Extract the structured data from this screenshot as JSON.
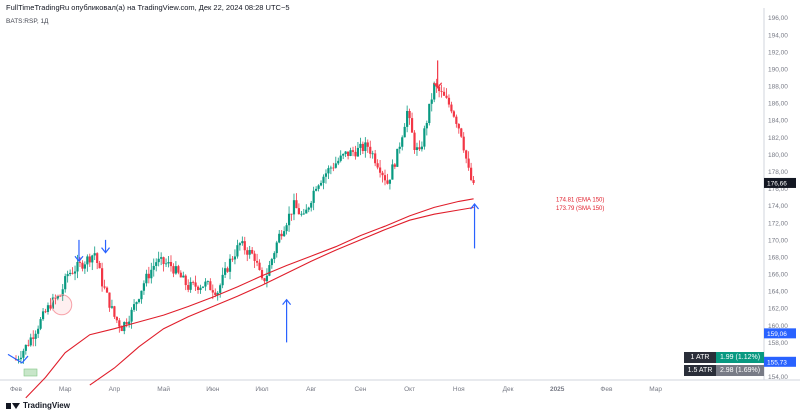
{
  "header": {
    "text": "FullTimeTradingRu опубликовал(а) на TradingView.com, Дек 22, 2024 08:28 UTC−5",
    "symbol": "BATS:RSP, 1Д"
  },
  "footer": {
    "brand": "TradingView"
  },
  "atr": [
    {
      "label": "1 ATR",
      "value": "1.99 (1.12%)",
      "color": "#089981"
    },
    {
      "label": "1.5 ATR",
      "value": "2.98 (1.69%)",
      "color": "#787b86"
    }
  ],
  "chart_data": {
    "type": "candlestick",
    "y_axis": {
      "range": [
        154,
        196
      ],
      "ticks": [
        "196,00",
        "194,00",
        "192,00",
        "190,00",
        "188,00",
        "186,00",
        "184,00",
        "182,00",
        "180,00",
        "178,00",
        "176,00",
        "174,00",
        "172,00",
        "170,00",
        "168,00",
        "166,00",
        "164,00",
        "162,00",
        "160,00",
        "158,00",
        "156,00",
        "154,00"
      ]
    },
    "x_axis": {
      "ticks": [
        "Фев",
        "Мар",
        "Апр",
        "Май",
        "Июн",
        "Июл",
        "Авг",
        "Сен",
        "Окт",
        "Ноя",
        "Дек",
        "2025",
        "Фев",
        "Мар"
      ]
    },
    "price_labels": [
      {
        "value": "176,66",
        "price": 176.66,
        "color": "#131722"
      },
      {
        "value": "159,06",
        "price": 159.06,
        "color": "#2962ff"
      },
      {
        "value": "155,73",
        "price": 155.73,
        "color": "#2962ff"
      }
    ],
    "ma_labels": [
      {
        "text": "174.81 (EMA 150)",
        "price": 174.81
      },
      {
        "text": "173.79 (SMA 150)",
        "price": 173.79
      }
    ],
    "ema150": [
      [
        0.2,
        151.5
      ],
      [
        0.6,
        153.9
      ],
      [
        1.0,
        156.8
      ],
      [
        1.5,
        158.9
      ],
      [
        2.0,
        159.6
      ],
      [
        2.5,
        160.4
      ],
      [
        3.0,
        161.2
      ],
      [
        3.5,
        162.2
      ],
      [
        4.0,
        163.3
      ],
      [
        4.5,
        164.5
      ],
      [
        5.0,
        165.8
      ],
      [
        5.5,
        167.0
      ],
      [
        6.0,
        168.1
      ],
      [
        6.5,
        169.2
      ],
      [
        7.0,
        170.5
      ],
      [
        7.5,
        171.6
      ],
      [
        8.0,
        172.8
      ],
      [
        8.5,
        173.8
      ],
      [
        9.0,
        174.5
      ],
      [
        9.3,
        174.81
      ]
    ],
    "sma150": [
      [
        1.5,
        153.0
      ],
      [
        2.0,
        155.0
      ],
      [
        2.5,
        157.5
      ],
      [
        3.0,
        159.6
      ],
      [
        3.5,
        161.0
      ],
      [
        4.0,
        162.2
      ],
      [
        4.5,
        163.4
      ],
      [
        5.0,
        164.7
      ],
      [
        5.5,
        166.1
      ],
      [
        6.0,
        167.5
      ],
      [
        6.5,
        168.8
      ],
      [
        7.0,
        170.0
      ],
      [
        7.5,
        171.2
      ],
      [
        8.0,
        172.3
      ],
      [
        8.5,
        173.0
      ],
      [
        9.0,
        173.5
      ],
      [
        9.3,
        173.79
      ]
    ],
    "price_path": [
      [
        0.0,
        156.0
      ],
      [
        0.2,
        157.5
      ],
      [
        0.45,
        160.0
      ],
      [
        0.7,
        162.5
      ],
      [
        0.9,
        163.5
      ],
      [
        1.05,
        166.0
      ],
      [
        1.3,
        167.0
      ],
      [
        1.6,
        168.5
      ],
      [
        1.75,
        165.0
      ],
      [
        2.0,
        161.0
      ],
      [
        2.15,
        159.8
      ],
      [
        2.35,
        161.5
      ],
      [
        2.6,
        165.0
      ],
      [
        2.85,
        167.5
      ],
      [
        3.15,
        167.0
      ],
      [
        3.5,
        164.5
      ],
      [
        3.85,
        164.8
      ],
      [
        4.1,
        164.0
      ],
      [
        4.35,
        167.5
      ],
      [
        4.55,
        169.5
      ],
      [
        4.85,
        168.0
      ],
      [
        5.0,
        165.0
      ],
      [
        5.1,
        166.0
      ],
      [
        5.35,
        170.5
      ],
      [
        5.65,
        174.0
      ],
      [
        5.85,
        172.5
      ],
      [
        6.1,
        176.5
      ],
      [
        6.4,
        178.5
      ],
      [
        6.7,
        180.0
      ],
      [
        6.95,
        180.5
      ],
      [
        7.15,
        181.0
      ],
      [
        7.4,
        178.5
      ],
      [
        7.55,
        176.7
      ],
      [
        7.75,
        180.0
      ],
      [
        7.95,
        185.0
      ],
      [
        8.1,
        181.0
      ],
      [
        8.2,
        180.0
      ],
      [
        8.35,
        184.0
      ],
      [
        8.5,
        188.0
      ],
      [
        8.65,
        187.0
      ],
      [
        8.85,
        185.5
      ],
      [
        9.05,
        182.5
      ],
      [
        9.2,
        178.0
      ],
      [
        9.3,
        176.0
      ]
    ],
    "arrows": [
      {
        "dir": "down",
        "x": 1.28,
        "from": 170.0,
        "to": 167.5,
        "color": "#2962ff"
      },
      {
        "dir": "down",
        "x": 1.82,
        "from": 170.0,
        "to": 168.5,
        "color": "#2962ff"
      },
      {
        "dir": "down",
        "x": 8.57,
        "from": 191.0,
        "to": 187.8,
        "color": "#f23645"
      },
      {
        "dir": "up",
        "x": 5.5,
        "from": 158.0,
        "to": 163.0,
        "color": "#2962ff"
      },
      {
        "dir": "up",
        "x": 9.32,
        "from": 169.0,
        "to": 174.2,
        "color": "#2962ff"
      }
    ],
    "circle": {
      "x": 0.93,
      "price": 162.4
    }
  }
}
